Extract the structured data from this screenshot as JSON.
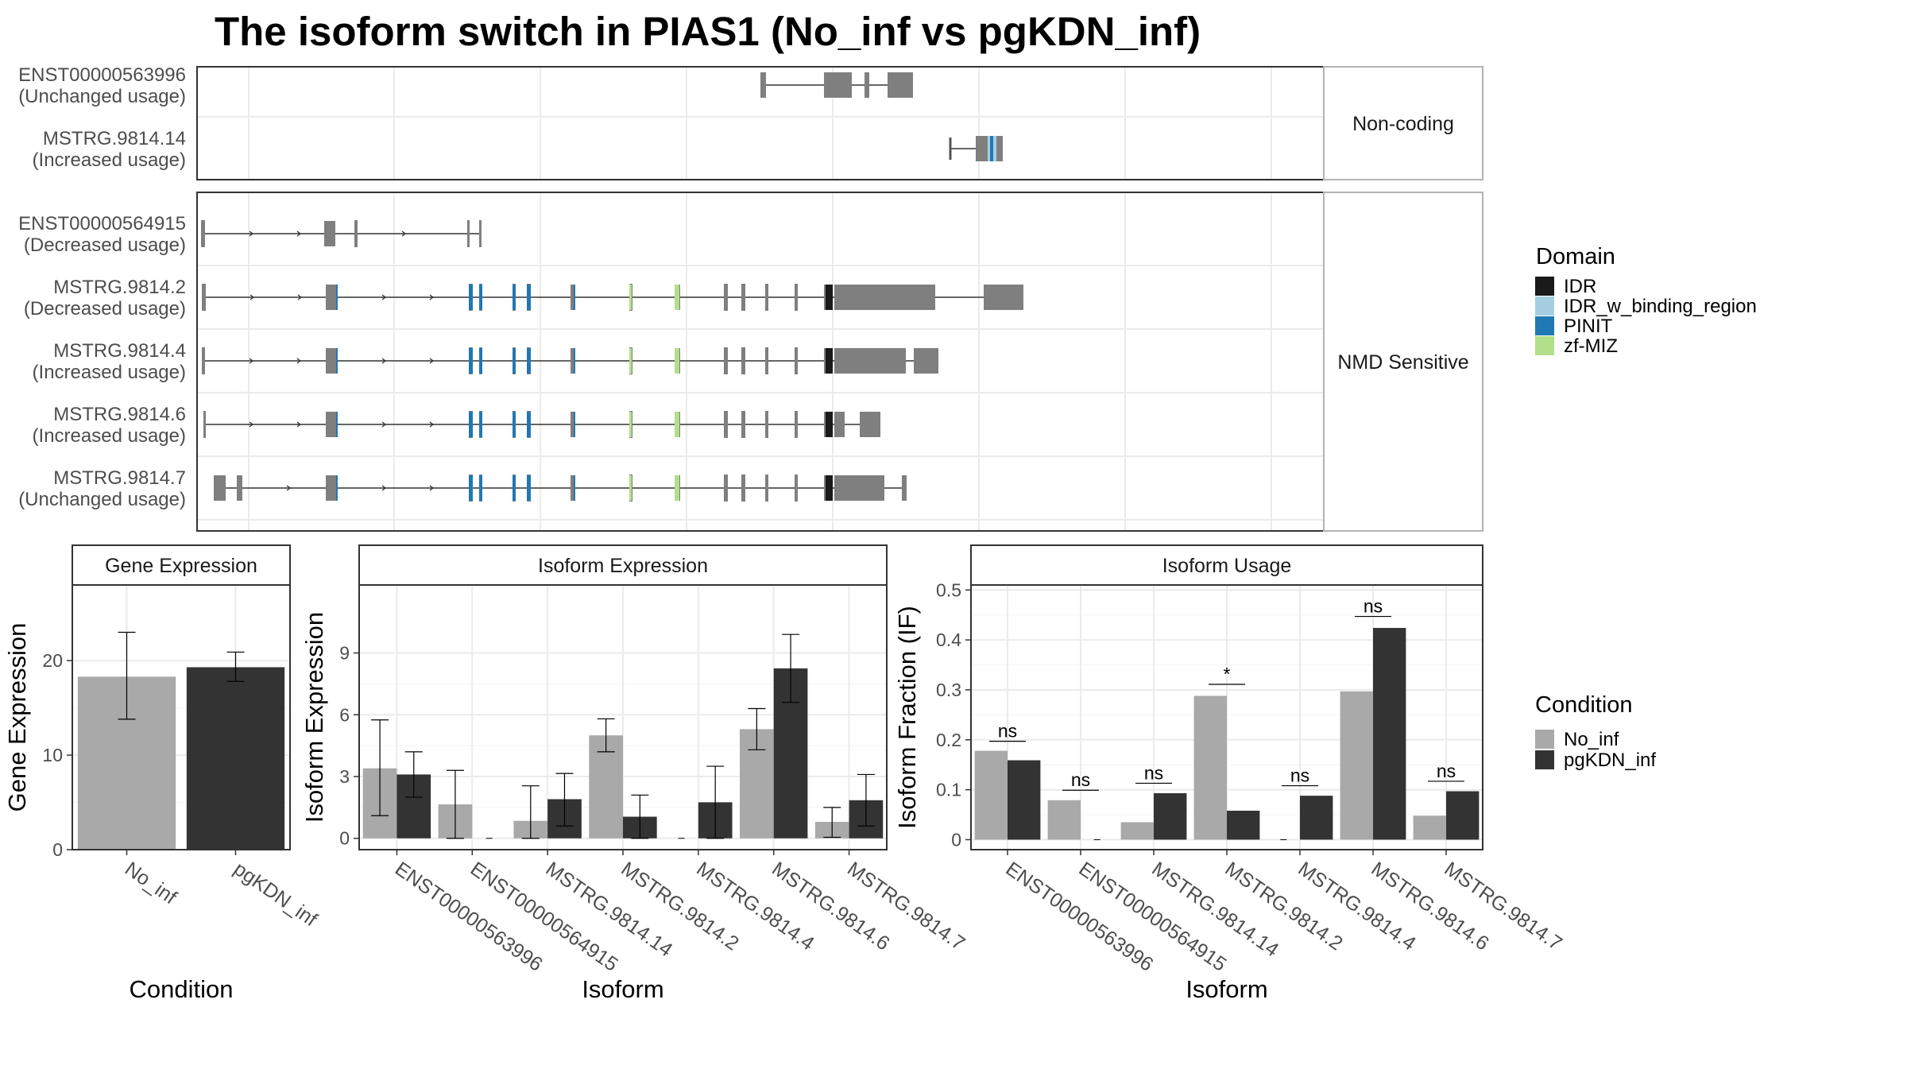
{
  "title": "The isoform switch in PIAS1 (No_inf vs pgKDN_inf)",
  "colors": {
    "IDR": "#1a1a1a",
    "IDR_w_binding_region": "#a6cee3",
    "PINIT": "#1f78b4",
    "zf-MIZ": "#b2df8a",
    "exon": "#7f7f7f",
    "No_inf": "#a9a9a9",
    "pgKDN_inf": "#333333"
  },
  "structure": {
    "facets": [
      {
        "label": "Non-coding",
        "transcripts": [
          {
            "id": "ENST00000563996",
            "usage": "(Unchanged usage)",
            "exons": [
              [
                957,
                964
              ],
              [
                1037,
                1072
              ],
              [
                1088,
                1094
              ],
              [
                1117,
                1149
              ]
            ],
            "domains": []
          },
          {
            "id": "MSTRG.9814.14",
            "usage": "(Increased usage)",
            "exons": [
              [
                1228,
                1262
              ]
            ],
            "start": 1196,
            "domains": [
              {
                "name": "IDR_w_binding_region",
                "range": [
                  1243,
                  1254
                ]
              },
              {
                "name": "PINIT",
                "range": [
                  1246,
                  1250
                ]
              }
            ]
          }
        ]
      },
      {
        "label": "NMD Sensitive",
        "transcripts": [
          {
            "id": "ENST00000564915",
            "usage": "(Decreased usage)",
            "exons": [
              [
                253,
                258
              ],
              [
                408,
                422
              ],
              [
                446,
                450
              ],
              [
                588,
                591
              ],
              [
                603,
                606
              ]
            ],
            "domains": []
          },
          {
            "id": "MSTRG.9814.2",
            "usage": "(Decreased usage)",
            "exons": [
              [
                254,
                259
              ],
              [
                410,
                425
              ],
              [
                590,
                595
              ],
              [
                603,
                607
              ],
              [
                645,
                649
              ],
              [
                663,
                668
              ],
              [
                718,
                724
              ],
              [
                792,
                796
              ],
              [
                849,
                856
              ],
              [
                911,
                916
              ],
              [
                933,
                938
              ],
              [
                963,
                967
              ],
              [
                1000,
                1004
              ],
              [
                1037,
                1048
              ],
              [
                1050,
                1177
              ],
              [
                1238,
                1288
              ]
            ],
            "domains": [
              {
                "name": "PINIT",
                "range": [
                  423,
                  425
                ]
              },
              {
                "name": "PINIT",
                "range": [
                  590,
                  595
                ]
              },
              {
                "name": "PINIT",
                "range": [
                  603,
                  607
                ]
              },
              {
                "name": "PINIT",
                "range": [
                  645,
                  649
                ]
              },
              {
                "name": "PINIT",
                "range": [
                  663,
                  668
                ]
              },
              {
                "name": "PINIT",
                "range": [
                  722,
                  724
                ]
              },
              {
                "name": "zf-MIZ",
                "range": [
                  792,
                  795
                ]
              },
              {
                "name": "zf-MIZ",
                "range": [
                  849,
                  855
                ]
              },
              {
                "name": "IDR",
                "range": [
                  1039,
                  1048
                ]
              }
            ]
          },
          {
            "id": "MSTRG.9814.4",
            "usage": "(Increased usage)",
            "exons": [
              [
                254,
                258
              ],
              [
                410,
                425
              ],
              [
                590,
                595
              ],
              [
                603,
                607
              ],
              [
                645,
                649
              ],
              [
                663,
                668
              ],
              [
                718,
                724
              ],
              [
                792,
                796
              ],
              [
                849,
                856
              ],
              [
                911,
                916
              ],
              [
                933,
                938
              ],
              [
                963,
                967
              ],
              [
                1000,
                1004
              ],
              [
                1037,
                1048
              ],
              [
                1050,
                1140
              ],
              [
                1150,
                1181
              ]
            ],
            "domains": [
              {
                "name": "PINIT",
                "range": [
                  423,
                  425
                ]
              },
              {
                "name": "PINIT",
                "range": [
                  590,
                  595
                ]
              },
              {
                "name": "PINIT",
                "range": [
                  603,
                  607
                ]
              },
              {
                "name": "PINIT",
                "range": [
                  645,
                  649
                ]
              },
              {
                "name": "PINIT",
                "range": [
                  663,
                  668
                ]
              },
              {
                "name": "PINIT",
                "range": [
                  722,
                  724
                ]
              },
              {
                "name": "zf-MIZ",
                "range": [
                  792,
                  795
                ]
              },
              {
                "name": "zf-MIZ",
                "range": [
                  849,
                  855
                ]
              },
              {
                "name": "IDR",
                "range": [
                  1039,
                  1048
                ]
              }
            ]
          },
          {
            "id": "MSTRG.9814.6",
            "usage": "(Increased usage)",
            "exons": [
              [
                256,
                258
              ],
              [
                410,
                425
              ],
              [
                590,
                595
              ],
              [
                603,
                607
              ],
              [
                645,
                649
              ],
              [
                663,
                668
              ],
              [
                718,
                724
              ],
              [
                792,
                796
              ],
              [
                849,
                856
              ],
              [
                911,
                916
              ],
              [
                933,
                938
              ],
              [
                963,
                967
              ],
              [
                1000,
                1004
              ],
              [
                1037,
                1048
              ],
              [
                1050,
                1063
              ],
              [
                1082,
                1108
              ]
            ],
            "domains": [
              {
                "name": "PINIT",
                "range": [
                  423,
                  425
                ]
              },
              {
                "name": "PINIT",
                "range": [
                  590,
                  595
                ]
              },
              {
                "name": "PINIT",
                "range": [
                  603,
                  607
                ]
              },
              {
                "name": "PINIT",
                "range": [
                  645,
                  649
                ]
              },
              {
                "name": "PINIT",
                "range": [
                  663,
                  668
                ]
              },
              {
                "name": "PINIT",
                "range": [
                  722,
                  724
                ]
              },
              {
                "name": "zf-MIZ",
                "range": [
                  792,
                  795
                ]
              },
              {
                "name": "zf-MIZ",
                "range": [
                  849,
                  855
                ]
              },
              {
                "name": "IDR",
                "range": [
                  1039,
                  1048
                ]
              }
            ]
          },
          {
            "id": "MSTRG.9814.7",
            "usage": "(Unchanged usage)",
            "exons": [
              [
                269,
                284
              ],
              [
                298,
                305
              ],
              [
                410,
                425
              ],
              [
                590,
                595
              ],
              [
                603,
                607
              ],
              [
                645,
                649
              ],
              [
                663,
                668
              ],
              [
                718,
                724
              ],
              [
                792,
                796
              ],
              [
                849,
                856
              ],
              [
                911,
                916
              ],
              [
                933,
                938
              ],
              [
                963,
                967
              ],
              [
                1000,
                1004
              ],
              [
                1037,
                1048
              ],
              [
                1050,
                1113
              ],
              [
                1135,
                1141
              ]
            ],
            "domains": [
              {
                "name": "PINIT",
                "range": [
                  423,
                  425
                ]
              },
              {
                "name": "PINIT",
                "range": [
                  590,
                  595
                ]
              },
              {
                "name": "PINIT",
                "range": [
                  603,
                  607
                ]
              },
              {
                "name": "PINIT",
                "range": [
                  645,
                  649
                ]
              },
              {
                "name": "PINIT",
                "range": [
                  663,
                  668
                ]
              },
              {
                "name": "PINIT",
                "range": [
                  722,
                  724
                ]
              },
              {
                "name": "zf-MIZ",
                "range": [
                  792,
                  795
                ]
              },
              {
                "name": "zf-MIZ",
                "range": [
                  849,
                  855
                ]
              },
              {
                "name": "IDR",
                "range": [
                  1039,
                  1048
                ]
              }
            ]
          }
        ]
      }
    ]
  },
  "legend_domain": {
    "title": "Domain",
    "items": [
      "IDR",
      "IDR_w_binding_region",
      "PINIT",
      "zf-MIZ"
    ]
  },
  "legend_condition": {
    "title": "Condition",
    "items": [
      "No_inf",
      "pgKDN_inf"
    ]
  },
  "chart_data": [
    {
      "type": "bar",
      "strip": "Gene Expression",
      "xlabel": "Condition",
      "ylabel": "Gene Expression",
      "categories": [
        "No_inf",
        "pgKDN_inf"
      ],
      "ylim": [
        0,
        28
      ],
      "yticks": [
        0,
        10,
        20
      ],
      "series": [
        {
          "name": "No_inf",
          "values": [
            18.3,
            null
          ],
          "err_low": [
            13.8,
            null
          ],
          "err_high": [
            23.0,
            null
          ]
        },
        {
          "name": "pgKDN_inf",
          "values": [
            null,
            19.3
          ],
          "err_low": [
            null,
            17.8
          ],
          "err_high": [
            null,
            20.9
          ]
        }
      ]
    },
    {
      "type": "bar",
      "strip": "Isoform Expression",
      "xlabel": "Isoform",
      "ylabel": "Isoform Expression",
      "categories": [
        "ENST00000563996",
        "ENST00000564915",
        "MSTRG.9814.14",
        "MSTRG.9814.2",
        "MSTRG.9814.4",
        "MSTRG.9814.6",
        "MSTRG.9814.7"
      ],
      "ylim": [
        -0.55,
        12.3
      ],
      "yticks": [
        0,
        3,
        6,
        9
      ],
      "series": [
        {
          "name": "No_inf",
          "values": [
            3.4,
            1.65,
            0.85,
            5.0,
            0.0,
            5.3,
            0.8
          ],
          "err_low": [
            1.1,
            0.0,
            0.0,
            4.2,
            null,
            4.3,
            0.05
          ],
          "err_high": [
            5.75,
            3.3,
            2.55,
            5.8,
            null,
            6.3,
            1.5
          ]
        },
        {
          "name": "pgKDN_inf",
          "values": [
            3.1,
            0.0,
            1.9,
            1.05,
            1.75,
            8.25,
            1.85
          ],
          "err_low": [
            2.0,
            null,
            0.6,
            0.0,
            0.0,
            6.6,
            0.6
          ],
          "err_high": [
            4.2,
            null,
            3.15,
            2.1,
            3.5,
            9.9,
            3.1
          ]
        }
      ]
    },
    {
      "type": "bar",
      "strip": "Isoform Usage",
      "xlabel": "Isoform",
      "ylabel": "Isoform Fraction (IF)",
      "categories": [
        "ENST00000563996",
        "ENST00000564915",
        "MSTRG.9814.14",
        "MSTRG.9814.2",
        "MSTRG.9814.4",
        "MSTRG.9814.6",
        "MSTRG.9814.7"
      ],
      "ylim": [
        -0.02,
        0.51
      ],
      "yticks": [
        0.0,
        0.1,
        0.2,
        0.3,
        0.4,
        0.5
      ],
      "series": [
        {
          "name": "No_inf",
          "values": [
            0.178,
            0.079,
            0.035,
            0.288,
            0.0,
            0.297,
            0.048
          ]
        },
        {
          "name": "pgKDN_inf",
          "values": [
            0.159,
            0.0,
            0.093,
            0.058,
            0.088,
            0.424,
            0.097
          ]
        }
      ],
      "significance": [
        {
          "label": "ns",
          "y": 0.197
        },
        {
          "label": "ns",
          "y": 0.099
        },
        {
          "label": "ns",
          "y": 0.113
        },
        {
          "label": "*",
          "y": 0.311
        },
        {
          "label": "ns",
          "y": 0.108
        },
        {
          "label": "ns",
          "y": 0.447
        },
        {
          "label": "ns",
          "y": 0.117
        }
      ]
    }
  ]
}
